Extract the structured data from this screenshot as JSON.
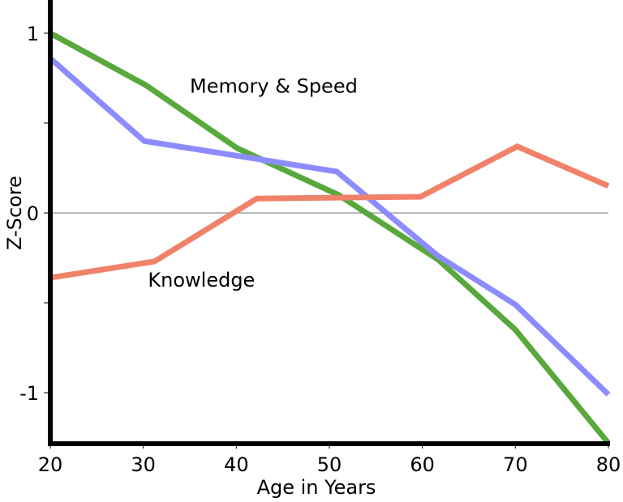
{
  "chart_data": {
    "type": "line",
    "title": "",
    "xlabel": "Age in Years",
    "ylabel": "Z-Score",
    "xlim": [
      20,
      80
    ],
    "ylim": [
      -1.28,
      1.18
    ],
    "x_ticks": [
      20,
      30,
      40,
      50,
      60,
      70,
      80
    ],
    "y_ticks": [
      {
        "value": 1,
        "label": "1"
      },
      {
        "value": 0.5,
        "label": ""
      },
      {
        "value": 0,
        "label": "0"
      },
      {
        "value": -0.5,
        "label": ""
      },
      {
        "value": -1,
        "label": "-1"
      }
    ],
    "zero_line": true,
    "grid": false,
    "series": [
      {
        "color": "#58a83c",
        "points": [
          [
            20,
            1.0
          ],
          [
            30.3,
            0.71
          ],
          [
            40.1,
            0.36
          ],
          [
            51,
            0.1
          ],
          [
            61.7,
            -0.26
          ],
          [
            70,
            -0.65
          ],
          [
            80,
            -1.28
          ]
        ]
      },
      {
        "color": "#8c8cff",
        "points": [
          [
            20,
            0.86
          ],
          [
            30.1,
            0.4
          ],
          [
            50.8,
            0.23
          ],
          [
            61.7,
            -0.24
          ],
          [
            70,
            -0.51
          ],
          [
            80,
            -1.01
          ]
        ]
      },
      {
        "color": "#f0826a",
        "points": [
          [
            20,
            -0.36
          ],
          [
            31.2,
            -0.27
          ],
          [
            42.2,
            0.08
          ],
          [
            59.8,
            0.09
          ],
          [
            70.2,
            0.37
          ],
          [
            80,
            0.15
          ]
        ]
      }
    ],
    "annotations": [
      {
        "text": "Memory & Speed",
        "x": 35,
        "y": 0.67
      },
      {
        "text": "Knowledge",
        "x": 30.5,
        "y": -0.41
      }
    ]
  }
}
